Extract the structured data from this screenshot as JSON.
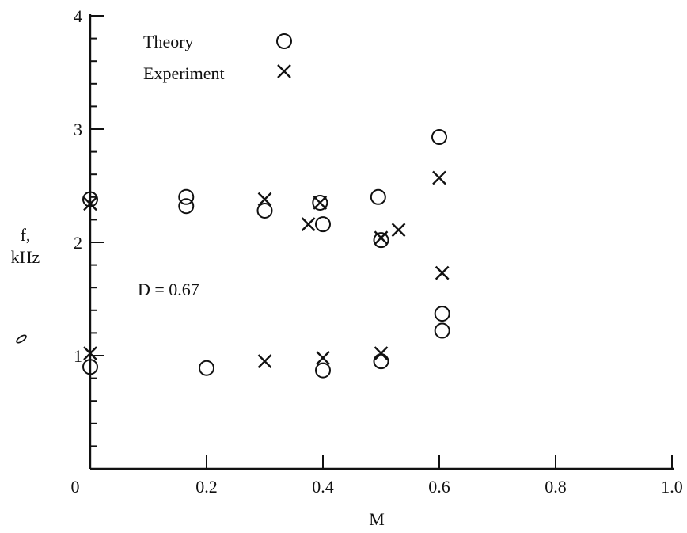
{
  "chart_data": {
    "type": "scatter",
    "title": "",
    "xlabel": "M",
    "ylabel_line1": "f,",
    "ylabel_line2": "kHz",
    "xlim": [
      0,
      1.0
    ],
    "ylim": [
      0,
      4
    ],
    "x_ticks": [
      {
        "value": 0,
        "label": "0"
      },
      {
        "value": 0.2,
        "label": "0.2"
      },
      {
        "value": 0.4,
        "label": "0.4"
      },
      {
        "value": 0.6,
        "label": "0.6"
      },
      {
        "value": 0.8,
        "label": "0.8"
      },
      {
        "value": 1.0,
        "label": "1.0"
      }
    ],
    "y_ticks": [
      {
        "value": 1,
        "label": "1"
      },
      {
        "value": 2,
        "label": "2"
      },
      {
        "value": 3,
        "label": "3"
      },
      {
        "value": 4,
        "label": "4"
      }
    ],
    "grid": false,
    "legend_position": "top-left",
    "annotation": "D = 0.67",
    "series": [
      {
        "name": "Theory",
        "marker": "circle",
        "points": [
          [
            0.0,
            2.38
          ],
          [
            0.0,
            0.9
          ],
          [
            0.165,
            2.4
          ],
          [
            0.165,
            2.32
          ],
          [
            0.2,
            0.89
          ],
          [
            0.3,
            2.28
          ],
          [
            0.395,
            2.35
          ],
          [
            0.4,
            2.16
          ],
          [
            0.4,
            0.87
          ],
          [
            0.495,
            2.4
          ],
          [
            0.5,
            2.02
          ],
          [
            0.5,
            0.95
          ],
          [
            0.6,
            2.93
          ],
          [
            0.605,
            1.37
          ],
          [
            0.605,
            1.22
          ]
        ]
      },
      {
        "name": "Experiment",
        "marker": "cross",
        "points": [
          [
            0.0,
            2.34
          ],
          [
            0.0,
            1.02
          ],
          [
            0.3,
            2.38
          ],
          [
            0.3,
            0.95
          ],
          [
            0.375,
            2.16
          ],
          [
            0.395,
            2.35
          ],
          [
            0.4,
            0.98
          ],
          [
            0.5,
            2.04
          ],
          [
            0.53,
            2.11
          ],
          [
            0.5,
            1.02
          ],
          [
            0.6,
            2.57
          ],
          [
            0.605,
            1.73
          ]
        ]
      }
    ]
  }
}
